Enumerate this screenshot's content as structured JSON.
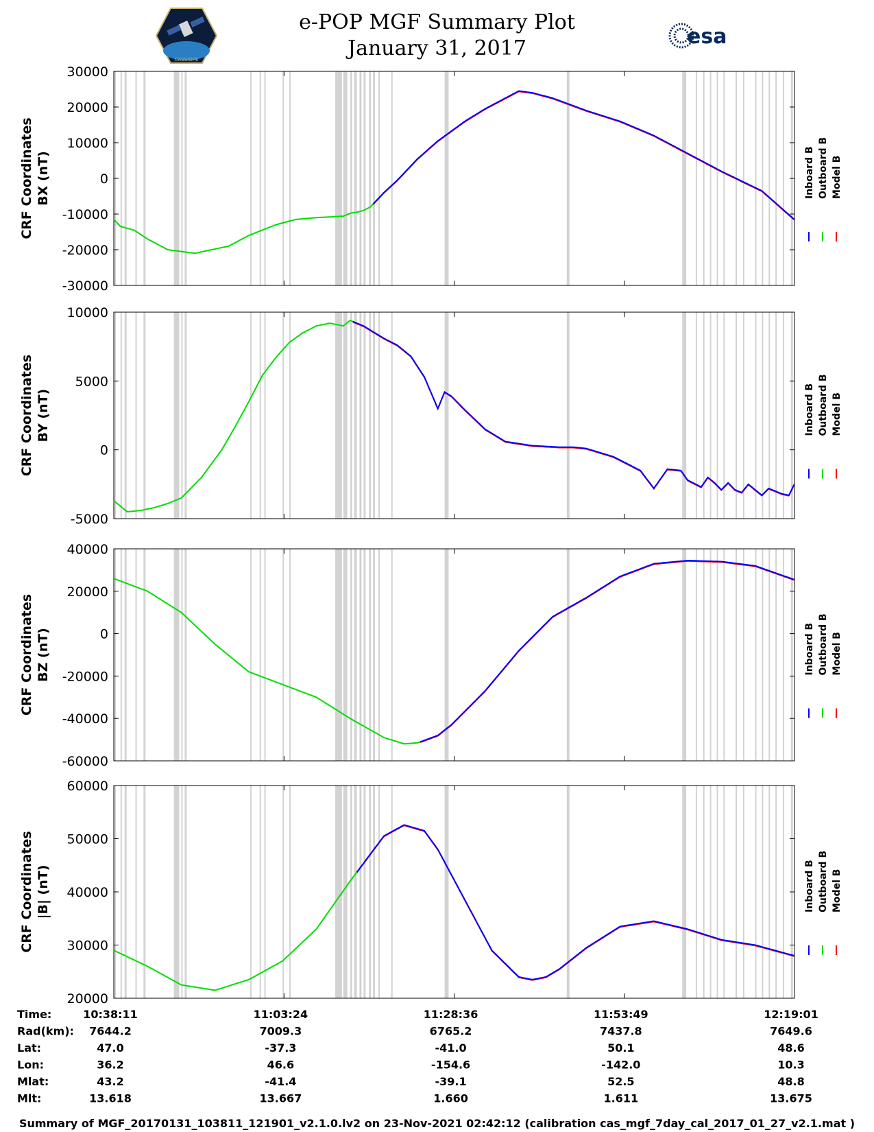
{
  "header": {
    "title_line1": "e-POP MGF Summary Plot",
    "title_line2": "January 31, 2017",
    "logo_right_text": "esa",
    "logo_left_text": "CASSIOPE"
  },
  "colors": {
    "inboard": "#0000ff",
    "outboard": "#00dd00",
    "model": "#ff0000",
    "gap": "#d3d3d3"
  },
  "legend": [
    "Inboard B",
    "Outboard B",
    "Model B"
  ],
  "chart_data": [
    {
      "type": "line",
      "id": "bx",
      "ylabel_line1": "CRF Coordinates",
      "ylabel_line2": "BX (nT)",
      "ylim": [
        -30000,
        30000
      ],
      "yticks": [
        "-30000",
        "-20000",
        "-10000",
        "0",
        "10000",
        "20000",
        "30000"
      ],
      "x_minutes": [
        0,
        1,
        3,
        5,
        8,
        12,
        17,
        20,
        24,
        27,
        30,
        32,
        33,
        34,
        35,
        36,
        37,
        38,
        39,
        40,
        42,
        45,
        48,
        52,
        55,
        60,
        62,
        65,
        70,
        75,
        80,
        85,
        90,
        96,
        100.8
      ],
      "values": [
        -11500,
        -13500,
        -14500,
        -17000,
        -20000,
        -21000,
        -19000,
        -16000,
        -13000,
        -11500,
        -11000,
        -10800,
        -10700,
        -10600,
        -9800,
        -9500,
        -9000,
        -8000,
        -6000,
        -4000,
        -500,
        5500,
        10500,
        16000,
        19500,
        24500,
        24000,
        22500,
        19000,
        16000,
        12000,
        7000,
        2000,
        -3500,
        -11500
      ],
      "green_until_minute": 38.5
    },
    {
      "type": "line",
      "id": "by",
      "ylabel_line1": "CRF Coordinates",
      "ylabel_line2": "BY (nT)",
      "ylim": [
        -5000,
        10000
      ],
      "yticks": [
        "-5000",
        "0",
        "5000",
        "10000"
      ],
      "x_minutes": [
        0,
        2,
        4,
        6,
        8,
        10,
        13,
        16,
        18,
        20,
        22,
        24,
        26,
        28,
        30,
        32,
        34,
        35,
        36,
        37,
        38,
        39,
        40,
        42,
        44,
        46,
        48,
        49,
        50,
        52,
        55,
        58,
        62,
        66,
        68,
        70,
        74,
        78,
        80,
        82,
        84,
        85,
        87,
        88,
        89,
        90,
        91,
        92,
        93,
        94,
        95,
        96,
        97,
        98,
        99,
        100,
        100.8
      ],
      "values": [
        -3700,
        -4500,
        -4400,
        -4200,
        -3900,
        -3500,
        -2000,
        0,
        1700,
        3500,
        5400,
        6700,
        7800,
        8500,
        9000,
        9200,
        9000,
        9400,
        9200,
        9000,
        8700,
        8400,
        8100,
        7600,
        6800,
        5300,
        3000,
        4200,
        3900,
        2900,
        1500,
        600,
        300,
        200,
        200,
        100,
        -500,
        -1500,
        -2800,
        -1400,
        -1500,
        -2200,
        -2700,
        -2000,
        -2400,
        -2900,
        -2400,
        -2900,
        -3100,
        -2500,
        -2900,
        -3300,
        -2800,
        -3000,
        -3200,
        -3300,
        -2500
      ],
      "green_until_minute": 35.5
    },
    {
      "type": "line",
      "id": "bz",
      "ylabel_line1": "CRF Coordinates",
      "ylabel_line2": "BZ (nT)",
      "ylim": [
        -60000,
        40000
      ],
      "yticks": [
        "-60000",
        "-40000",
        "-20000",
        "0",
        "20000",
        "40000"
      ],
      "x_minutes": [
        0,
        5,
        10,
        15,
        20,
        25,
        30,
        35,
        40,
        43,
        45,
        48,
        50,
        55,
        60,
        65,
        70,
        75,
        80,
        85,
        90,
        95,
        100.8
      ],
      "values": [
        26000,
        20000,
        10000,
        -5000,
        -18000,
        -24000,
        -30000,
        -40000,
        -49000,
        -52000,
        -51500,
        -48000,
        -43000,
        -27000,
        -8000,
        8000,
        17000,
        27000,
        33000,
        34500,
        34000,
        32000,
        25500
      ],
      "green_until_minute": 45.5
    },
    {
      "type": "line",
      "id": "bmag",
      "ylabel_line1": "CRF Coordinates",
      "ylabel_line2": "|B| (nT)",
      "ylim": [
        20000,
        60000
      ],
      "yticks": [
        "20000",
        "30000",
        "40000",
        "50000",
        "60000"
      ],
      "x_minutes": [
        0,
        5,
        10,
        15,
        20,
        25,
        30,
        35,
        40,
        43,
        46,
        48,
        52,
        56,
        60,
        62,
        64,
        66,
        70,
        75,
        80,
        85,
        90,
        95,
        100.8
      ],
      "values": [
        29000,
        26000,
        22500,
        21500,
        23500,
        27000,
        33000,
        42000,
        50500,
        52600,
        51500,
        48000,
        38500,
        29000,
        24000,
        23500,
        24000,
        25500,
        29500,
        33500,
        34500,
        33000,
        31000,
        30000,
        28000
      ],
      "green_until_minute": 36
    }
  ],
  "gap_bands_minutes": [
    [
      0,
      0.3
    ],
    [
      1.0,
      1.2
    ],
    [
      1.6,
      1.9
    ],
    [
      3.2,
      3.4
    ],
    [
      4.4,
      4.7
    ],
    [
      8.9,
      9.7
    ],
    [
      10.0,
      10.2
    ],
    [
      10.5,
      10.8
    ],
    [
      20.2,
      20.4
    ],
    [
      21.6,
      21.8
    ],
    [
      22.3,
      22.5
    ],
    [
      25.0,
      25.2
    ],
    [
      26.0,
      26.2
    ],
    [
      32.8,
      33.8
    ],
    [
      34.0,
      34.6
    ],
    [
      35.0,
      35.3
    ],
    [
      35.6,
      36.0
    ],
    [
      36.4,
      36.7
    ],
    [
      37.0,
      37.3
    ],
    [
      37.8,
      38.1
    ],
    [
      38.4,
      38.7
    ],
    [
      39.2,
      39.4
    ],
    [
      41.1,
      41.3
    ],
    [
      49.0,
      49.6
    ],
    [
      67.1,
      67.5
    ],
    [
      84.2,
      84.8
    ],
    [
      86.2,
      86.4
    ],
    [
      87.3,
      87.5
    ],
    [
      88.3,
      88.5
    ],
    [
      89.3,
      89.5
    ],
    [
      90.3,
      90.5
    ],
    [
      92.1,
      92.3
    ],
    [
      93.2,
      93.4
    ],
    [
      95.0,
      95.2
    ],
    [
      96.0,
      96.2
    ],
    [
      97.0,
      97.2
    ],
    [
      98.0,
      98.2
    ],
    [
      99.1,
      99.3
    ],
    [
      100.3,
      100.6
    ]
  ],
  "x_axis": {
    "start_minute_label_offset": 0,
    "tick_minutes": [
      0,
      25.22,
      50.42,
      75.63,
      100.83
    ],
    "max_minute": 100.83
  },
  "info_table": {
    "rows": [
      {
        "label": "Time:",
        "values": [
          "10:38:11",
          "11:03:24",
          "11:28:36",
          "11:53:49",
          "12:19:01"
        ]
      },
      {
        "label": "Rad(km):",
        "values": [
          "7644.2",
          "7009.3",
          "6765.2",
          "7437.8",
          "7649.6"
        ]
      },
      {
        "label": "Lat:",
        "values": [
          "47.0",
          "-37.3",
          "-41.0",
          "50.1",
          "48.6"
        ]
      },
      {
        "label": "Lon:",
        "values": [
          "36.2",
          "46.6",
          "-154.6",
          "-142.0",
          "10.3"
        ]
      },
      {
        "label": "Mlat:",
        "values": [
          "43.2",
          "-41.4",
          "-39.1",
          "52.5",
          "48.8"
        ]
      },
      {
        "label": "Mlt:",
        "values": [
          "13.618",
          "13.667",
          "1.660",
          "1.611",
          "13.675"
        ]
      }
    ]
  },
  "footer": "Summary of MGF_20170131_103811_121901_v2.1.0.lv2 on 23-Nov-2021 02:42:12 (calibration cas_mgf_7day_cal_2017_01_27_v2.1.mat )"
}
